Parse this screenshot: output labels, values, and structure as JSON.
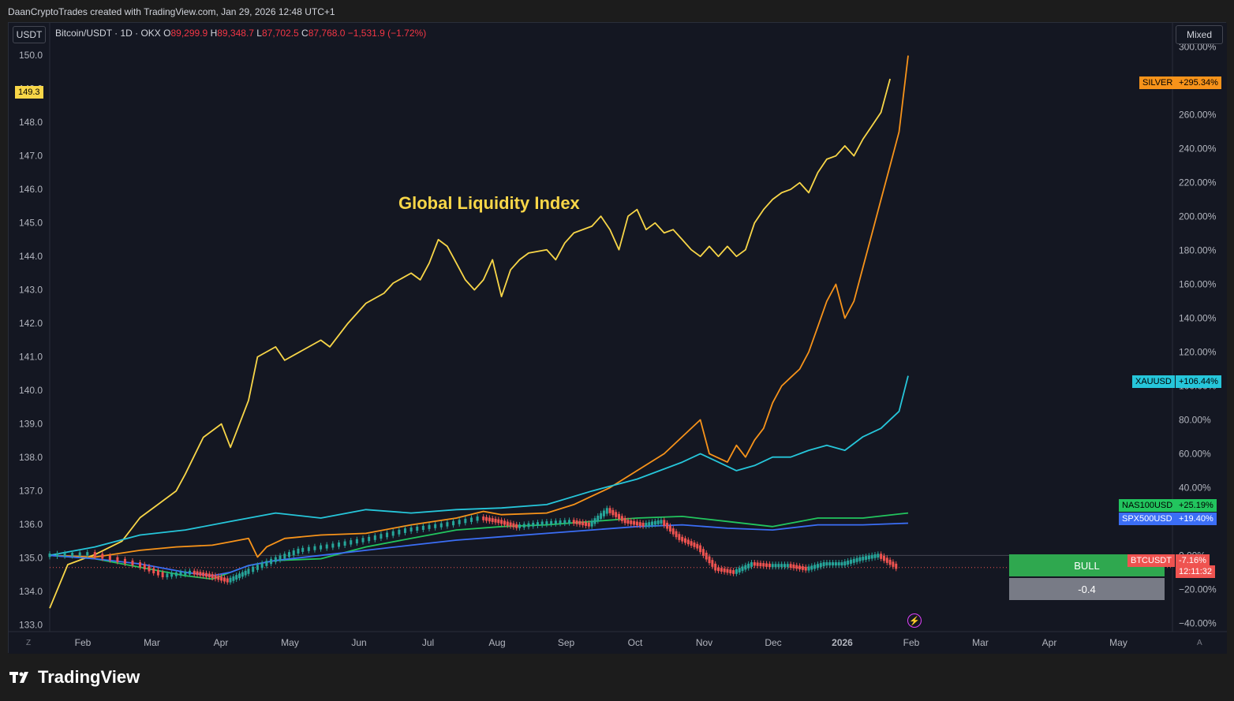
{
  "header": {
    "created_text": "DaanCryptoTrades created with TradingView.com, Jan 29, 2026 12:48 UTC+1"
  },
  "toolbar": {
    "currency_button": "USDT",
    "scale_mode_button": "Mixed"
  },
  "legend": {
    "symbol": "Bitcoin/USDT · 1D · OKX",
    "open_key": "O",
    "open": "89,299.9",
    "high_key": "H",
    "high": "89,348.7",
    "low_key": "L",
    "low": "87,702.5",
    "close_key": "C",
    "close": "87,768.0",
    "change": "−1,531.9 (−1.72%)"
  },
  "annotations": {
    "liquidity_title": "Global Liquidity Index"
  },
  "indicator": {
    "bull_label": "BULL",
    "value_label": "-0.4"
  },
  "colors": {
    "background": "#141722",
    "liquidity": "#f8d648",
    "silver": "#f7931a",
    "gold": "#26c6da",
    "nasdaq": "#22c55e",
    "spx": "#3b6ef5",
    "btc_up": "#26a69a",
    "btc_down": "#ef5350"
  },
  "price_tags": {
    "left_current": "149.3",
    "silver_name": "SILVER",
    "silver_value": "+295.34%",
    "gold_name": "XAUUSD",
    "gold_value": "+106.44%",
    "nas_name": "NAS100USD",
    "nas_value": "+25.19%",
    "spx_name": "SPX500USD",
    "spx_value": "+19.40%",
    "btc_name": "BTCUSDT",
    "btc_value": "-7.16%",
    "btc_countdown": "12:11:32"
  },
  "footer": {
    "logo_text": "TradingView",
    "corner_left": "Z",
    "corner_right": "A"
  },
  "chart_data": {
    "type": "line",
    "x_ticks": [
      "Feb",
      "Mar",
      "Apr",
      "May",
      "Jun",
      "Jul",
      "Aug",
      "Sep",
      "Oct",
      "Nov",
      "Dec",
      "2026",
      "Feb",
      "Mar",
      "Apr",
      "May"
    ],
    "left_axis": {
      "ticks": [
        "150.0",
        "149.0",
        "148.0",
        "147.0",
        "146.0",
        "145.0",
        "144.0",
        "143.0",
        "142.0",
        "141.0",
        "140.0",
        "139.0",
        "138.0",
        "137.0",
        "136.0",
        "135.0",
        "134.0",
        "133.0"
      ],
      "range": [
        132.8,
        150.5
      ]
    },
    "right_axis": {
      "ticks": [
        "300.00%",
        "280.00%",
        "260.00%",
        "240.00%",
        "220.00%",
        "200.00%",
        "180.00%",
        "160.00%",
        "140.00%",
        "120.00%",
        "100.00%",
        "80.00%",
        "60.00%",
        "40.00%",
        "20.00%",
        "0.00%",
        "−20.00%",
        "−40.00%"
      ],
      "range": [
        -45,
        305
      ]
    },
    "series": [
      {
        "name": "Global Liquidity Index",
        "axis": "left",
        "points": [
          [
            0,
            133.5
          ],
          [
            0.02,
            134.8
          ],
          [
            0.05,
            135.1
          ],
          [
            0.08,
            135.5
          ],
          [
            0.1,
            136.2
          ],
          [
            0.12,
            136.6
          ],
          [
            0.14,
            137.0
          ],
          [
            0.15,
            137.5
          ],
          [
            0.17,
            138.6
          ],
          [
            0.19,
            139.0
          ],
          [
            0.2,
            138.3
          ],
          [
            0.22,
            139.7
          ],
          [
            0.23,
            141.0
          ],
          [
            0.25,
            141.3
          ],
          [
            0.26,
            140.9
          ],
          [
            0.28,
            141.2
          ],
          [
            0.3,
            141.5
          ],
          [
            0.31,
            141.3
          ],
          [
            0.33,
            142.0
          ],
          [
            0.35,
            142.6
          ],
          [
            0.37,
            142.9
          ],
          [
            0.38,
            143.2
          ],
          [
            0.4,
            143.5
          ],
          [
            0.41,
            143.3
          ],
          [
            0.42,
            143.8
          ],
          [
            0.43,
            144.5
          ],
          [
            0.44,
            144.3
          ],
          [
            0.45,
            143.8
          ],
          [
            0.46,
            143.3
          ],
          [
            0.47,
            143.0
          ],
          [
            0.48,
            143.3
          ],
          [
            0.49,
            143.9
          ],
          [
            0.5,
            142.8
          ],
          [
            0.51,
            143.6
          ],
          [
            0.52,
            143.9
          ],
          [
            0.53,
            144.1
          ],
          [
            0.55,
            144.2
          ],
          [
            0.56,
            143.9
          ],
          [
            0.57,
            144.4
          ],
          [
            0.58,
            144.7
          ],
          [
            0.6,
            144.9
          ],
          [
            0.61,
            145.2
          ],
          [
            0.62,
            144.8
          ],
          [
            0.63,
            144.2
          ],
          [
            0.64,
            145.2
          ],
          [
            0.65,
            145.4
          ],
          [
            0.66,
            144.8
          ],
          [
            0.67,
            145.0
          ],
          [
            0.68,
            144.7
          ],
          [
            0.69,
            144.8
          ],
          [
            0.7,
            144.5
          ],
          [
            0.71,
            144.2
          ],
          [
            0.72,
            144.0
          ],
          [
            0.73,
            144.3
          ],
          [
            0.74,
            144.0
          ],
          [
            0.75,
            144.3
          ],
          [
            0.76,
            144.0
          ],
          [
            0.77,
            144.2
          ],
          [
            0.78,
            145.0
          ],
          [
            0.79,
            145.4
          ],
          [
            0.8,
            145.7
          ],
          [
            0.81,
            145.9
          ],
          [
            0.82,
            146.0
          ],
          [
            0.83,
            146.2
          ],
          [
            0.84,
            145.9
          ],
          [
            0.85,
            146.5
          ],
          [
            0.86,
            146.9
          ],
          [
            0.87,
            147.0
          ],
          [
            0.88,
            147.3
          ],
          [
            0.89,
            147.0
          ],
          [
            0.9,
            147.5
          ],
          [
            0.91,
            147.9
          ],
          [
            0.92,
            148.3
          ],
          [
            0.93,
            149.3
          ]
        ]
      },
      {
        "name": "SILVER",
        "axis": "right",
        "points": [
          [
            0,
            0
          ],
          [
            0.05,
            -1
          ],
          [
            0.1,
            3
          ],
          [
            0.14,
            5
          ],
          [
            0.18,
            6
          ],
          [
            0.2,
            8
          ],
          [
            0.22,
            10
          ],
          [
            0.23,
            -1
          ],
          [
            0.24,
            5
          ],
          [
            0.26,
            10
          ],
          [
            0.3,
            12
          ],
          [
            0.35,
            13
          ],
          [
            0.4,
            18
          ],
          [
            0.45,
            22
          ],
          [
            0.48,
            26
          ],
          [
            0.5,
            24
          ],
          [
            0.55,
            25
          ],
          [
            0.58,
            30
          ],
          [
            0.62,
            40
          ],
          [
            0.65,
            50
          ],
          [
            0.68,
            60
          ],
          [
            0.7,
            70
          ],
          [
            0.72,
            80
          ],
          [
            0.73,
            60
          ],
          [
            0.75,
            55
          ],
          [
            0.76,
            65
          ],
          [
            0.77,
            58
          ],
          [
            0.78,
            68
          ],
          [
            0.79,
            75
          ],
          [
            0.8,
            90
          ],
          [
            0.81,
            100
          ],
          [
            0.82,
            105
          ],
          [
            0.83,
            110
          ],
          [
            0.84,
            120
          ],
          [
            0.85,
            135
          ],
          [
            0.86,
            150
          ],
          [
            0.87,
            160
          ],
          [
            0.88,
            140
          ],
          [
            0.89,
            150
          ],
          [
            0.9,
            170
          ],
          [
            0.91,
            190
          ],
          [
            0.92,
            210
          ],
          [
            0.93,
            230
          ],
          [
            0.94,
            250
          ],
          [
            0.95,
            295
          ]
        ]
      },
      {
        "name": "XAUUSD",
        "axis": "right",
        "points": [
          [
            0,
            0
          ],
          [
            0.05,
            5
          ],
          [
            0.1,
            12
          ],
          [
            0.15,
            15
          ],
          [
            0.2,
            20
          ],
          [
            0.25,
            25
          ],
          [
            0.3,
            22
          ],
          [
            0.35,
            27
          ],
          [
            0.4,
            25
          ],
          [
            0.45,
            27
          ],
          [
            0.5,
            28
          ],
          [
            0.55,
            30
          ],
          [
            0.6,
            38
          ],
          [
            0.65,
            45
          ],
          [
            0.7,
            55
          ],
          [
            0.72,
            60
          ],
          [
            0.74,
            55
          ],
          [
            0.76,
            50
          ],
          [
            0.78,
            53
          ],
          [
            0.8,
            58
          ],
          [
            0.82,
            58
          ],
          [
            0.84,
            62
          ],
          [
            0.86,
            65
          ],
          [
            0.88,
            62
          ],
          [
            0.9,
            70
          ],
          [
            0.92,
            75
          ],
          [
            0.94,
            85
          ],
          [
            0.95,
            106
          ]
        ]
      },
      {
        "name": "NAS100USD",
        "axis": "right",
        "points": [
          [
            0,
            0
          ],
          [
            0.05,
            -2
          ],
          [
            0.1,
            -7
          ],
          [
            0.15,
            -12
          ],
          [
            0.18,
            -14
          ],
          [
            0.2,
            -10
          ],
          [
            0.22,
            -6
          ],
          [
            0.25,
            -3
          ],
          [
            0.3,
            -2
          ],
          [
            0.35,
            5
          ],
          [
            0.4,
            10
          ],
          [
            0.45,
            15
          ],
          [
            0.5,
            17
          ],
          [
            0.55,
            18
          ],
          [
            0.6,
            20
          ],
          [
            0.65,
            22
          ],
          [
            0.7,
            23
          ],
          [
            0.75,
            20
          ],
          [
            0.8,
            17
          ],
          [
            0.85,
            22
          ],
          [
            0.9,
            22
          ],
          [
            0.95,
            25
          ]
        ]
      },
      {
        "name": "SPX500USD",
        "axis": "right",
        "points": [
          [
            0,
            0
          ],
          [
            0.05,
            -2
          ],
          [
            0.1,
            -5
          ],
          [
            0.15,
            -10
          ],
          [
            0.18,
            -12
          ],
          [
            0.2,
            -10
          ],
          [
            0.22,
            -6
          ],
          [
            0.25,
            -3
          ],
          [
            0.3,
            0
          ],
          [
            0.35,
            3
          ],
          [
            0.4,
            6
          ],
          [
            0.45,
            9
          ],
          [
            0.5,
            11
          ],
          [
            0.55,
            13
          ],
          [
            0.6,
            15
          ],
          [
            0.65,
            17
          ],
          [
            0.7,
            18
          ],
          [
            0.75,
            16
          ],
          [
            0.8,
            15
          ],
          [
            0.85,
            18
          ],
          [
            0.9,
            18
          ],
          [
            0.95,
            19
          ]
        ]
      },
      {
        "name": "BTCUSDT",
        "axis": "right",
        "points": [
          [
            0,
            0
          ],
          [
            0.05,
            1
          ],
          [
            0.1,
            -5
          ],
          [
            0.13,
            -12
          ],
          [
            0.16,
            -10
          ],
          [
            0.18,
            -12
          ],
          [
            0.2,
            -15
          ],
          [
            0.22,
            -10
          ],
          [
            0.25,
            -3
          ],
          [
            0.28,
            3
          ],
          [
            0.32,
            6
          ],
          [
            0.36,
            10
          ],
          [
            0.4,
            15
          ],
          [
            0.44,
            18
          ],
          [
            0.48,
            22
          ],
          [
            0.5,
            20
          ],
          [
            0.52,
            17
          ],
          [
            0.55,
            19
          ],
          [
            0.58,
            20
          ],
          [
            0.6,
            18
          ],
          [
            0.62,
            27
          ],
          [
            0.64,
            20
          ],
          [
            0.66,
            18
          ],
          [
            0.68,
            20
          ],
          [
            0.7,
            10
          ],
          [
            0.72,
            5
          ],
          [
            0.74,
            -8
          ],
          [
            0.76,
            -10
          ],
          [
            0.78,
            -5
          ],
          [
            0.8,
            -6
          ],
          [
            0.82,
            -6
          ],
          [
            0.84,
            -8
          ],
          [
            0.86,
            -5
          ],
          [
            0.88,
            -5
          ],
          [
            0.9,
            -2
          ],
          [
            0.92,
            0
          ],
          [
            0.94,
            -7
          ]
        ]
      }
    ]
  }
}
